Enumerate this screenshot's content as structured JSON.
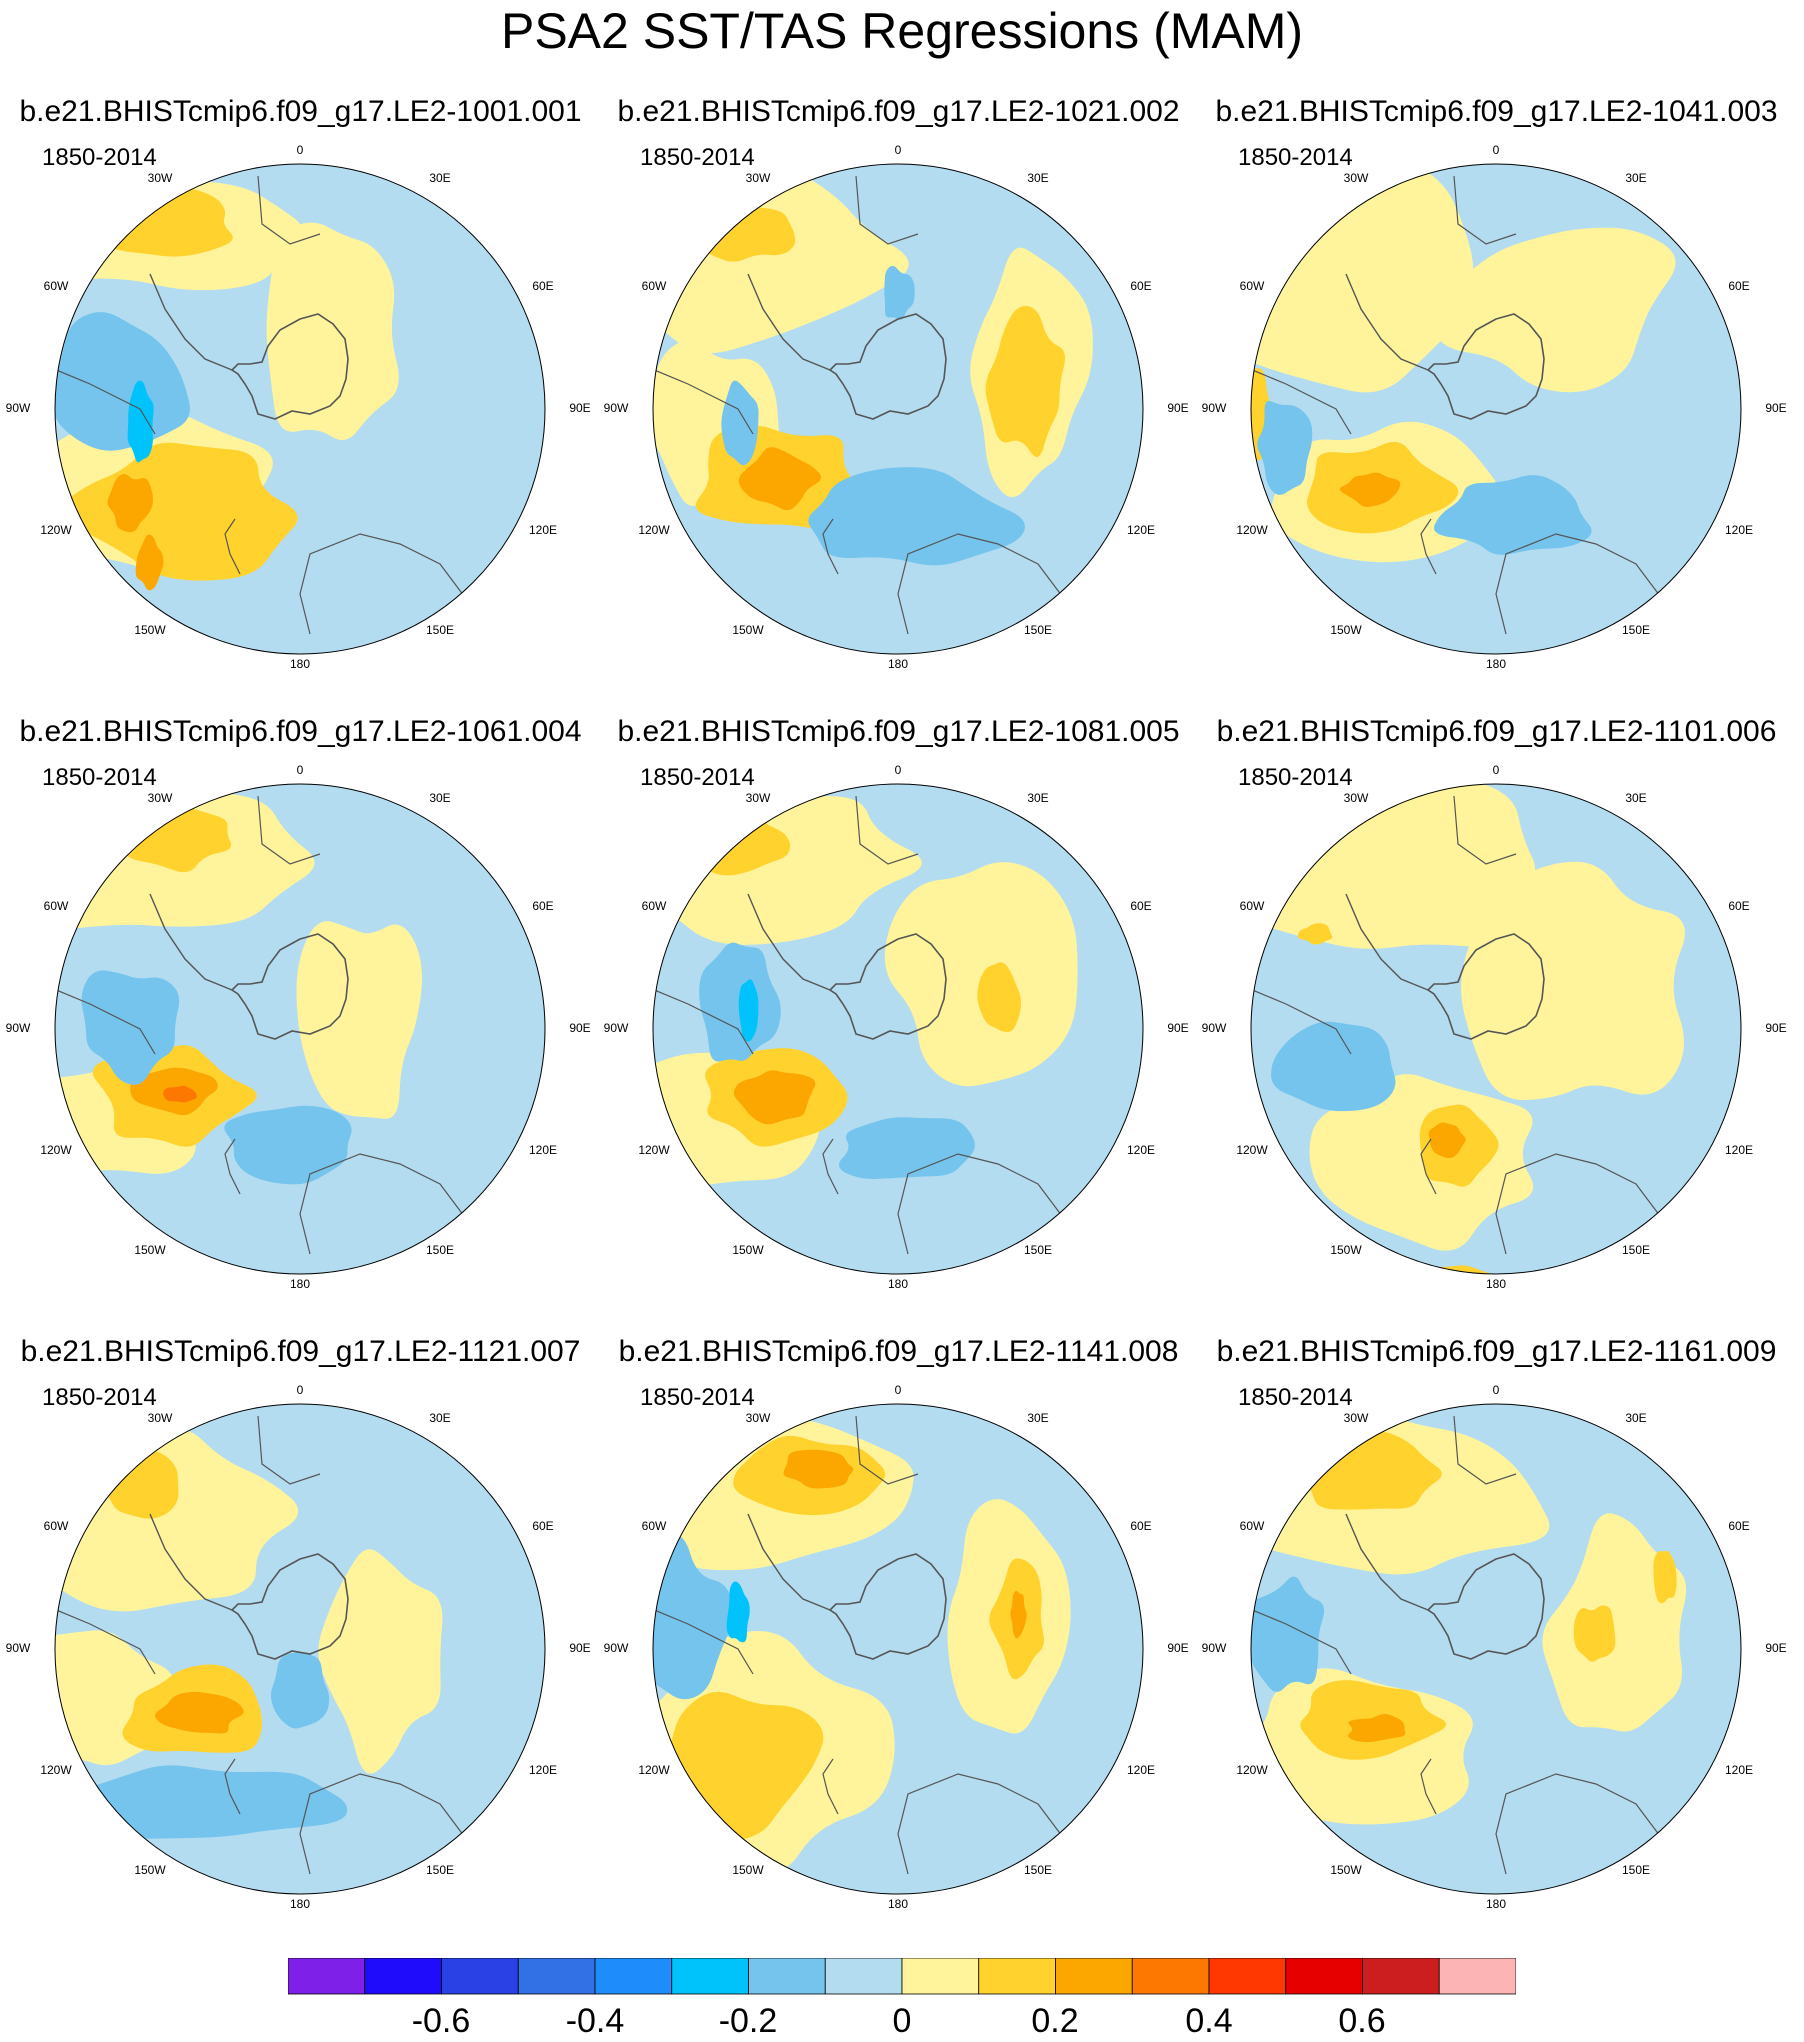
{
  "title": "PSA2 SST/TAS Regressions (MAM)",
  "colors": {
    "neg_0.7_0.6": "#7f20e8",
    "neg_0.6_0.5": "#1e0cfb",
    "neg_0.5_0.4": "#2a41e6",
    "neg_0.4_0.3": "#3270e6",
    "neg_0.3_0.2": "#1e8cfb",
    "neg_0.2_0.15": "#00c3fb",
    "neg_0.15_0.05": "#74c4ee",
    "neg_0.05_0": "#b4dcf0",
    "pos_0_0.05": "#fff49c",
    "pos_0.05_0.15": "#ffd22e",
    "pos_0.15_0.25": "#fca600",
    "pos_0.25_0.35": "#fc7800",
    "pos_0.35_0.45": "#ff3700",
    "pos_0.45_0.55": "#e60000",
    "pos_0.55_0.65": "#cc1e1e",
    "pos_0.65_0.75": "#fcb4b4",
    "land_outline": "#555555"
  },
  "map": {
    "projection": "south polar stereographic",
    "period_label": "1850-2014",
    "longitude_labels": [
      "0",
      "30E",
      "60E",
      "90E",
      "120E",
      "150E",
      "180",
      "150W",
      "120W",
      "90W",
      "60W",
      "30W"
    ]
  },
  "panels": [
    {
      "title": "b.e21.BHISTcmip6.f09_g17.LE2-1001.001",
      "years": "1850-2014"
    },
    {
      "title": "b.e21.BHISTcmip6.f09_g17.LE2-1021.002",
      "years": "1850-2014"
    },
    {
      "title": "b.e21.BHISTcmip6.f09_g17.LE2-1041.003",
      "years": "1850-2014"
    },
    {
      "title": "b.e21.BHISTcmip6.f09_g17.LE2-1061.004",
      "years": "1850-2014"
    },
    {
      "title": "b.e21.BHISTcmip6.f09_g17.LE2-1081.005",
      "years": "1850-2014"
    },
    {
      "title": "b.e21.BHISTcmip6.f09_g17.LE2-1101.006",
      "years": "1850-2014"
    },
    {
      "title": "b.e21.BHISTcmip6.f09_g17.LE2-1121.007",
      "years": "1850-2014"
    },
    {
      "title": "b.e21.BHISTcmip6.f09_g17.LE2-1141.008",
      "years": "1850-2014"
    },
    {
      "title": "b.e21.BHISTcmip6.f09_g17.LE2-1161.009",
      "years": "1850-2014"
    }
  ],
  "colorbar": {
    "colors": [
      "#7f20e8",
      "#1e0cfb",
      "#2a41e6",
      "#3270e6",
      "#1e8cfb",
      "#00c3fb",
      "#74c4ee",
      "#b4dcf0",
      "#fff49c",
      "#ffd22e",
      "#fca600",
      "#fc7800",
      "#ff3700",
      "#e60000",
      "#cc1e1e",
      "#fcb4b4"
    ],
    "labels": [
      "-0.6",
      "-0.4",
      "-0.2",
      "0",
      "0.2",
      "0.4",
      "0.6"
    ]
  }
}
